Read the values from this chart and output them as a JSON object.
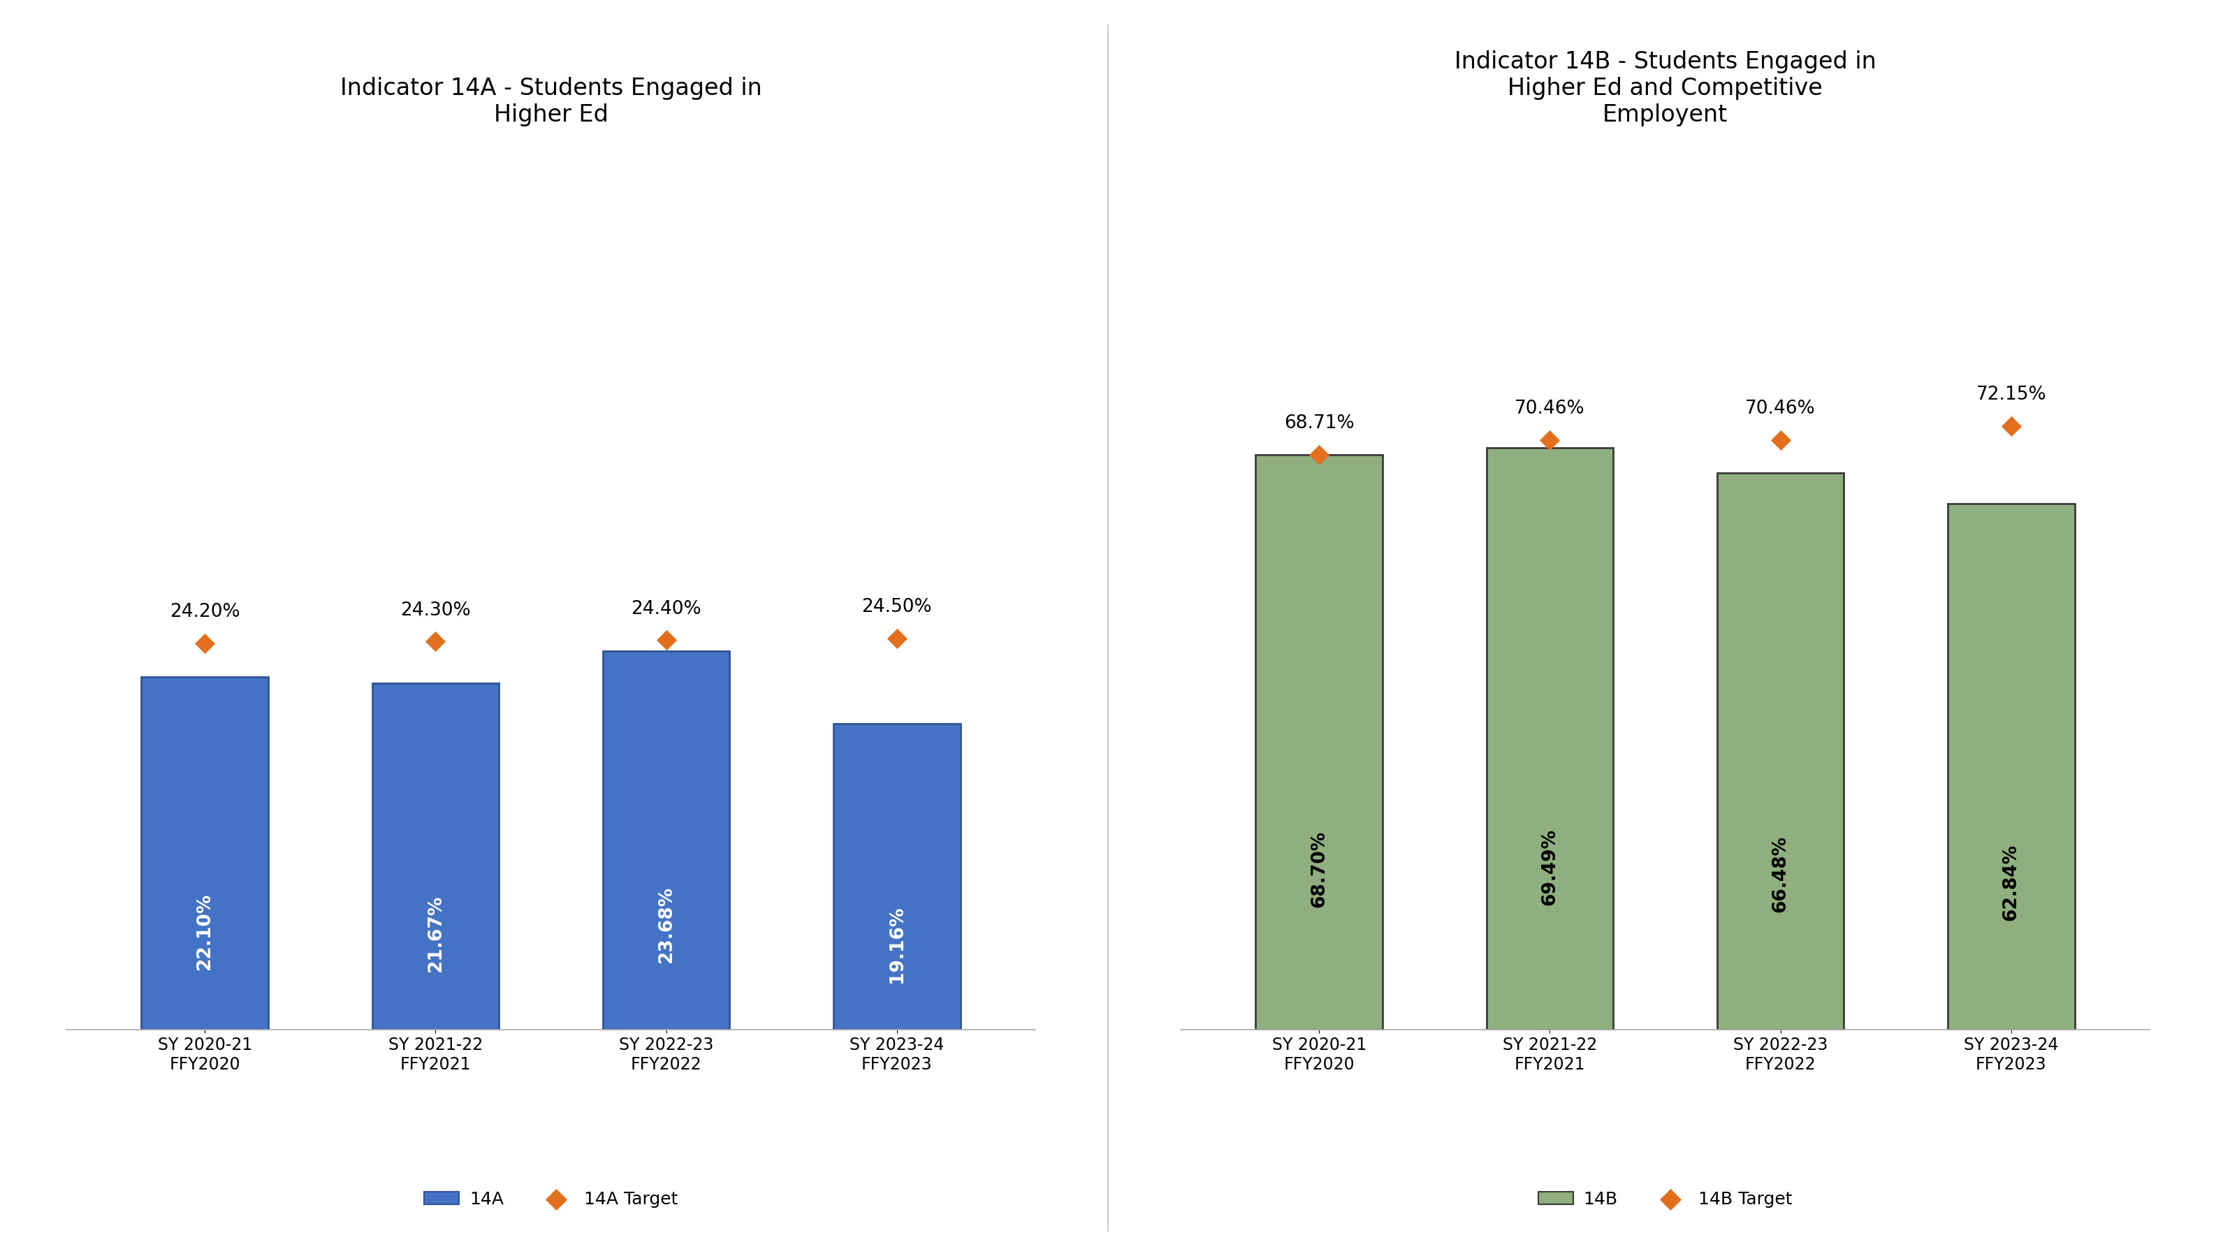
{
  "chart_14A": {
    "title": "Indicator 14A - Students Engaged in\nHigher Ed",
    "categories": [
      "SY 2020-21\nFFY2020",
      "SY 2021-22\nFFY2021",
      "SY 2022-23\nFFY2022",
      "SY 2023-24\nFFY2023"
    ],
    "values": [
      22.1,
      21.67,
      23.68,
      19.16
    ],
    "targets": [
      24.2,
      24.3,
      24.4,
      24.5
    ],
    "value_labels": [
      "22.10%",
      "21.67%",
      "23.68%",
      "19.16%"
    ],
    "target_labels": [
      "24.20%",
      "24.30%",
      "24.40%",
      "24.50%"
    ],
    "bar_color": "#4472C4",
    "bar_edgecolor": "#2F5496",
    "text_color": "#FFFFFF",
    "ylim": [
      0,
      55
    ],
    "legend_bar_label": "14A",
    "legend_target_label": "14A Target"
  },
  "chart_14B": {
    "title": "Indicator 14B - Students Engaged in\nHigher Ed and Competitive\nEmployent",
    "categories": [
      "SY 2020-21\nFFY2020",
      "SY 2021-22\nFFY2021",
      "SY 2022-23\nFFY2022",
      "SY 2023-24\nFFY2023"
    ],
    "values": [
      68.7,
      69.49,
      66.48,
      62.84
    ],
    "targets": [
      68.71,
      70.46,
      70.46,
      72.15
    ],
    "value_labels": [
      "68.70%",
      "69.49%",
      "66.48%",
      "62.84%"
    ],
    "target_labels": [
      "68.71%",
      "70.46%",
      "70.46%",
      "72.15%"
    ],
    "bar_color": "#8FAF7E",
    "bar_edgecolor": "#3B3B3B",
    "text_color": "#000000",
    "ylim": [
      0,
      105
    ],
    "legend_bar_label": "14B",
    "legend_target_label": "14B Target"
  },
  "target_marker_color": "#E36F1E",
  "target_marker": "D",
  "target_marker_size": 220,
  "background_color": "#FFFFFF",
  "title_fontsize": 24,
  "bar_label_fontsize": 19,
  "target_label_fontsize": 19,
  "tick_label_fontsize": 17,
  "legend_fontsize": 18
}
